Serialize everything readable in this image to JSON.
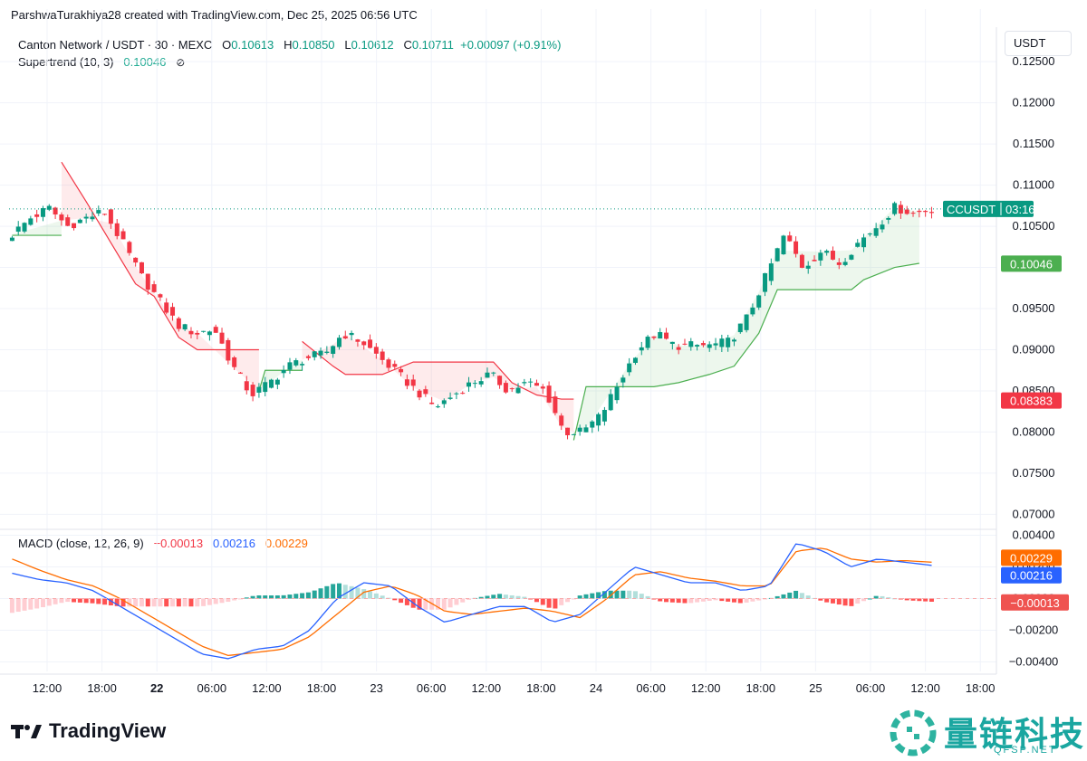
{
  "header": {
    "attribution": "ParshwaTurakhiya28 created with TradingView.com, Dec 25, 2025 06:56 UTC",
    "symbol_line": "Canton Network / USDT · 30 · MEXC",
    "o_label": "O",
    "o": "0.10613",
    "h_label": "H",
    "h": "0.10850",
    "l_label": "L",
    "l": "0.10612",
    "c_label": "C",
    "c": "0.10711",
    "change": "+0.00097 (+0.91%)",
    "indicator": "Supertrend (10, 3)",
    "indicator_value": "0.10046",
    "currency": "USDT"
  },
  "macd_legend": {
    "label": "MACD (close, 12, 26, 9)",
    "hist": "−0.00013",
    "macd": "0.00216",
    "signal": "0.00229"
  },
  "brand": "TradingView",
  "watermark": {
    "text": "量链科技",
    "sub": "QFSP.NET"
  },
  "colors": {
    "up": "#089981",
    "down": "#f23645",
    "st_up": "#4caf50",
    "st_down": "#f23645",
    "macd": "#2962ff",
    "signal": "#ff6d00"
  },
  "chart_data": {
    "type": "candlestick",
    "price_axis": {
      "ticks": [
        "0.12500",
        "0.12000",
        "0.11500",
        "0.11000",
        "0.10500",
        "0.10000",
        "0.09500",
        "0.09000",
        "0.08500",
        "0.08000",
        "0.07500",
        "0.07000"
      ],
      "range": [
        0.0685,
        0.1259
      ]
    },
    "macd_axis": {
      "ticks": [
        "0.00400",
        "0.00200",
        "0.00000",
        "−0.00200",
        "−0.00400"
      ],
      "range": [
        -0.0046,
        0.0042
      ]
    },
    "time_axis": {
      "labels": [
        "12:00",
        "18:00",
        "22",
        "06:00",
        "12:00",
        "18:00",
        "23",
        "06:00",
        "12:00",
        "18:00",
        "24",
        "06:00",
        "12:00",
        "18:00",
        "25",
        "06:00",
        "12:00",
        "18:00"
      ],
      "bold": [
        false,
        false,
        true,
        false,
        false,
        false,
        false,
        false,
        false,
        false,
        false,
        false,
        false,
        false,
        false,
        false,
        false,
        false
      ]
    },
    "price_badges": {
      "symbol": "CCUSDT",
      "countdown": "03:16",
      "last": 0.10711,
      "supertrend": "0.10046",
      "supertrend_value": 0.10046,
      "low_label": "0.08383",
      "low_value": 0.08383,
      "macd_signal": "0.00229",
      "macd_signal_value": 0.00229,
      "macd_value": "0.00216",
      "macd_value_value": 0.00216,
      "hist": "−0.00013",
      "hist_value": -0.00013
    },
    "close_anchors": [
      0.104,
      0.106,
      0.1072,
      0.105,
      0.106,
      0.1068,
      0.103,
      0.099,
      0.096,
      0.093,
      0.092,
      0.0925,
      0.088,
      0.0845,
      0.086,
      0.088,
      0.089,
      0.0895,
      0.092,
      0.091,
      0.089,
      0.087,
      0.085,
      0.083,
      0.0845,
      0.086,
      0.087,
      0.085,
      0.086,
      0.085,
      0.08,
      0.08,
      0.082,
      0.086,
      0.09,
      0.092,
      0.0905,
      0.0905,
      0.0905,
      0.091,
      0.094,
      0.099,
      0.104,
      0.1,
      0.102,
      0.1005,
      0.103,
      0.105,
      0.1073,
      0.1066,
      0.1071
    ],
    "supertrend_segments": [
      {
        "trend": "up",
        "points": [
          [
            0,
            0.1039
          ],
          [
            8,
            0.1039
          ]
        ]
      },
      {
        "trend": "down",
        "points": [
          [
            8,
            0.1128
          ],
          [
            12,
            0.108
          ],
          [
            16,
            0.103
          ],
          [
            20,
            0.098
          ],
          [
            23,
            0.0965
          ],
          [
            27,
            0.0915
          ],
          [
            30,
            0.09
          ],
          [
            36,
            0.09
          ],
          [
            40,
            0.09
          ]
        ]
      },
      {
        "trend": "up",
        "points": [
          [
            40,
            0.085
          ],
          [
            41,
            0.0875
          ],
          [
            46,
            0.0875
          ],
          [
            47,
            0.0875
          ]
        ]
      },
      {
        "trend": "down",
        "points": [
          [
            47,
            0.091
          ],
          [
            52,
            0.088
          ],
          [
            54,
            0.087
          ],
          [
            60,
            0.087
          ],
          [
            65,
            0.0885
          ],
          [
            70,
            0.0885
          ],
          [
            75,
            0.0885
          ],
          [
            78,
            0.0885
          ],
          [
            81,
            0.086
          ],
          [
            85,
            0.0845
          ],
          [
            89,
            0.084
          ],
          [
            91,
            0.084
          ]
        ]
      },
      {
        "trend": "up",
        "points": [
          [
            91,
            0.079
          ],
          [
            93,
            0.0855
          ],
          [
            100,
            0.0855
          ],
          [
            104,
            0.0855
          ],
          [
            108,
            0.086
          ],
          [
            113,
            0.087
          ],
          [
            117,
            0.088
          ],
          [
            121,
            0.092
          ],
          [
            124,
            0.0973
          ],
          [
            131,
            0.0973
          ],
          [
            136,
            0.0973
          ],
          [
            138,
            0.0985
          ],
          [
            143,
            0.1
          ],
          [
            147,
            0.1005
          ]
        ]
      }
    ],
    "macd_line_anchors": [
      0.0016,
      0.0012,
      0.001,
      0.0005,
      -0.0005,
      -0.0015,
      -0.0025,
      -0.0035,
      -0.0038,
      -0.0032,
      -0.003,
      -0.002,
      0.0,
      0.001,
      0.0008,
      -0.0005,
      -0.0015,
      -0.001,
      -0.0005,
      -0.0005,
      -0.0015,
      -0.001,
      0.0005,
      0.002,
      0.0015,
      0.001,
      0.001,
      0.0005,
      0.0008,
      0.0035,
      0.003,
      0.002,
      0.0025,
      0.0023,
      0.0021
    ],
    "signal_line_anchors": [
      0.0025,
      0.0018,
      0.0012,
      0.0008,
      0.0,
      -0.001,
      -0.002,
      -0.003,
      -0.0036,
      -0.0034,
      -0.0032,
      -0.0024,
      -0.001,
      0.0004,
      0.0008,
      0.0002,
      -0.0008,
      -0.001,
      -0.0008,
      -0.0006,
      -0.0008,
      -0.0012,
      0.0,
      0.0015,
      0.0017,
      0.0013,
      0.0011,
      0.0008,
      0.0008,
      0.003,
      0.0032,
      0.0025,
      0.0023,
      0.0024,
      0.0023
    ]
  }
}
